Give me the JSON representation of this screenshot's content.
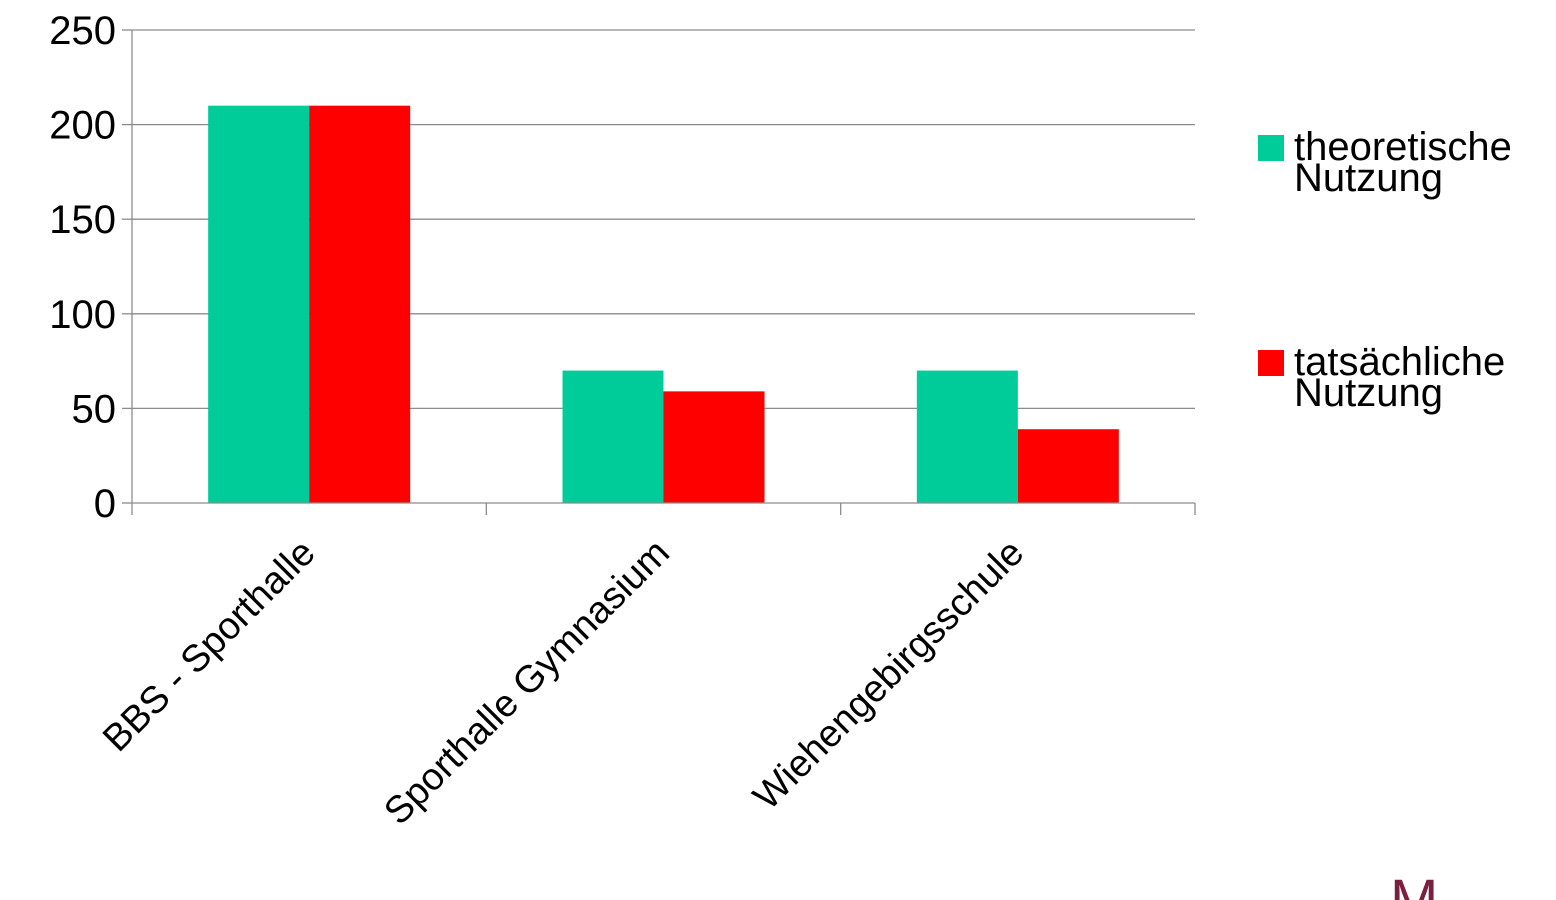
{
  "chart_data": {
    "type": "bar",
    "categories": [
      "BBS - Sporthalle",
      "Sporthalle Gymnasium",
      "Wiehengebirgsschule"
    ],
    "series": [
      {
        "name": "theoretische Nutzung",
        "values": [
          210,
          70,
          70
        ],
        "color": "#00cc99"
      },
      {
        "name": "tatsächliche Nutzung",
        "values": [
          210,
          59,
          39
        ],
        "color": "#ff0000"
      }
    ],
    "yticks": [
      "0",
      "50",
      "100",
      "150",
      "200",
      "250"
    ],
    "ylim": [
      0,
      250
    ],
    "grid": true,
    "legend_position": "right"
  },
  "legend": {
    "items": [
      {
        "line1": "theoretische",
        "line2": "Nutzung"
      },
      {
        "line1": "tatsächliche",
        "line2": "Nutzung"
      }
    ]
  },
  "corner_text": "M"
}
